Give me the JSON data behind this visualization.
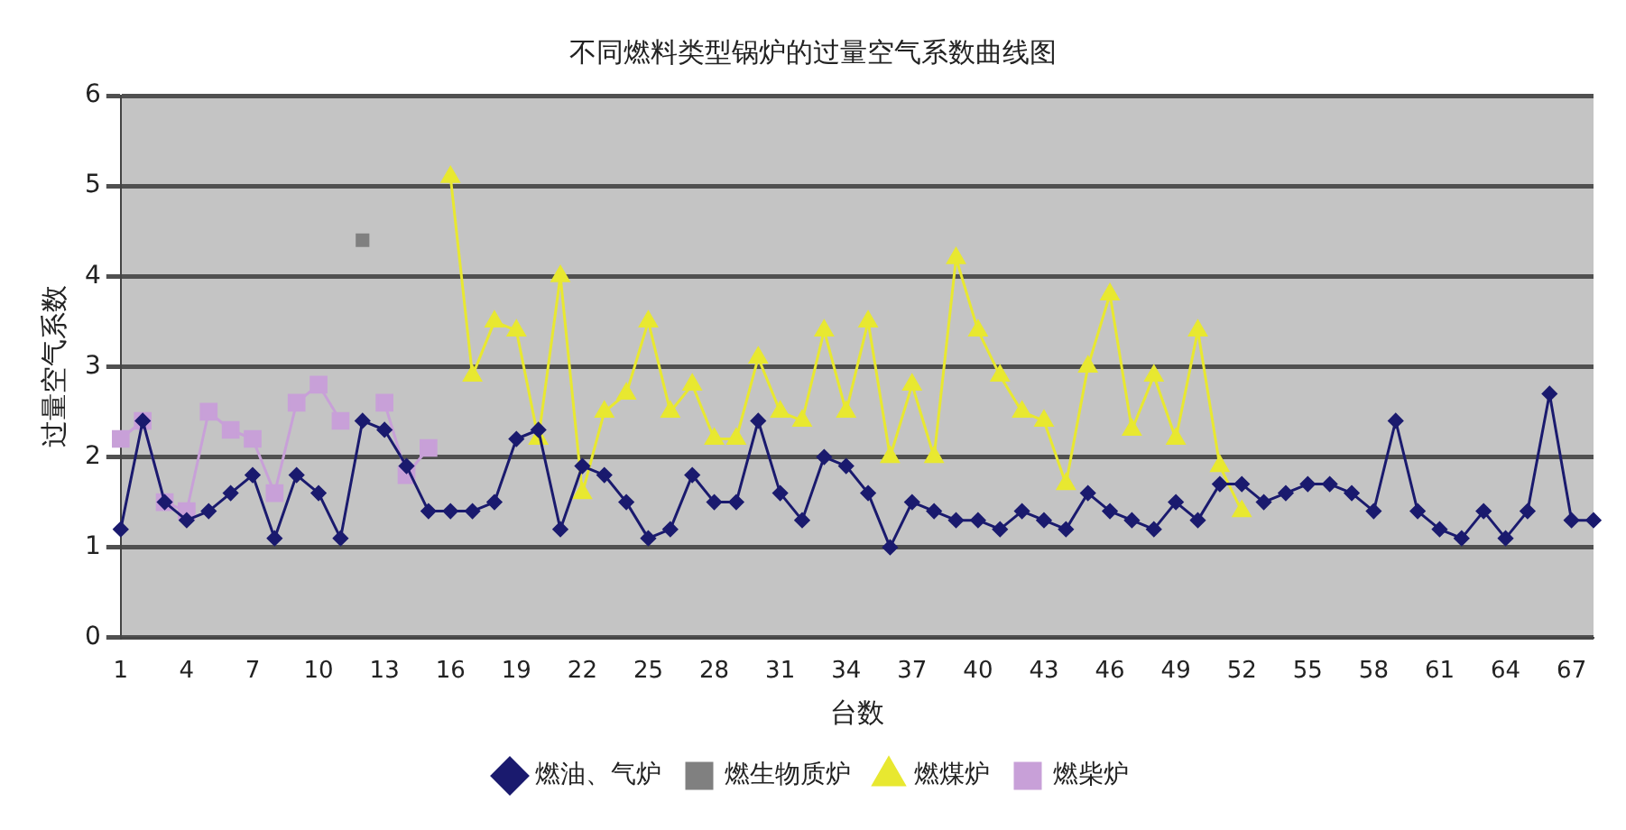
{
  "chart_data": {
    "type": "line",
    "title": "不同燃料类型锅炉的过量空气系数曲线图",
    "xlabel": "台数",
    "ylabel": "过量空气系数",
    "categories": [
      "1",
      null,
      null,
      "4",
      null,
      null,
      "7",
      null,
      null,
      "10",
      null,
      null,
      "13",
      null,
      null,
      "16",
      null,
      null,
      "19",
      null,
      null,
      "22",
      null,
      null,
      "25",
      null,
      null,
      "28",
      null,
      null,
      "31",
      null,
      null,
      "34",
      null,
      null,
      "37",
      null,
      null,
      "40",
      null,
      null,
      "43",
      null,
      null,
      "46",
      null,
      null,
      "49",
      null,
      null,
      "52",
      null,
      null,
      "55",
      null,
      null,
      "58",
      null,
      null,
      "61",
      null,
      null,
      "64",
      null,
      null,
      "67",
      null
    ],
    "ylim": [
      0,
      6
    ],
    "yticks": [
      0,
      1,
      2,
      3,
      4,
      5,
      6
    ],
    "grid": "y",
    "legend": "bottom",
    "series": [
      {
        "name": "燃油、气炉",
        "color": "#1a1a6e",
        "marker": "diamond",
        "values": [
          1.2,
          2.4,
          1.5,
          1.3,
          1.4,
          1.6,
          1.8,
          1.1,
          1.8,
          1.6,
          1.1,
          2.4,
          2.3,
          1.9,
          1.4,
          1.4,
          1.4,
          1.5,
          2.2,
          2.3,
          1.2,
          1.9,
          1.8,
          1.5,
          1.1,
          1.2,
          1.8,
          1.5,
          1.5,
          2.4,
          1.6,
          1.3,
          2.0,
          1.9,
          1.6,
          1.0,
          1.5,
          1.4,
          1.3,
          1.3,
          1.2,
          1.4,
          1.3,
          1.2,
          1.6,
          1.4,
          1.3,
          1.2,
          1.5,
          1.3,
          1.7,
          1.7,
          1.5,
          1.6,
          1.7,
          1.7,
          1.6,
          1.4,
          2.4,
          1.4,
          1.2,
          1.1,
          1.4,
          1.1,
          1.4,
          2.7,
          1.3,
          1.3
        ]
      },
      {
        "name": "燃生物质炉",
        "color": "#808080",
        "marker": "square",
        "values": [
          null,
          null,
          null,
          null,
          null,
          null,
          null,
          null,
          null,
          null,
          null,
          4.4,
          null,
          null,
          null,
          null,
          null,
          null,
          null,
          null,
          null,
          null,
          null,
          null,
          null,
          null,
          null,
          null,
          null,
          null,
          null,
          null,
          null,
          null,
          null,
          null,
          null,
          null,
          null,
          null,
          null,
          null,
          null,
          null,
          null,
          null,
          null,
          null,
          null,
          null,
          null,
          null,
          null,
          null,
          null,
          null,
          null,
          null,
          null,
          null,
          null,
          null,
          null,
          null,
          null,
          null,
          null,
          null
        ]
      },
      {
        "name": "燃煤炉",
        "color": "#e8e830",
        "marker": "triangle",
        "values": [
          null,
          null,
          null,
          null,
          null,
          null,
          null,
          null,
          null,
          null,
          null,
          null,
          null,
          null,
          null,
          5.1,
          2.9,
          3.5,
          3.4,
          2.2,
          4.0,
          1.6,
          2.5,
          2.7,
          3.5,
          2.5,
          2.8,
          2.2,
          2.2,
          3.1,
          2.5,
          2.4,
          3.4,
          2.5,
          3.5,
          2.0,
          2.8,
          2.0,
          4.2,
          3.4,
          2.9,
          2.5,
          2.4,
          1.7,
          3.0,
          3.8,
          2.3,
          2.9,
          2.2,
          3.4,
          1.9,
          1.4,
          null,
          null,
          null,
          null,
          null,
          null,
          null,
          null,
          null,
          null,
          null,
          null,
          null,
          null,
          null,
          null
        ]
      },
      {
        "name": "燃柴炉",
        "color": "#c8a0d8",
        "marker": "square",
        "values": [
          2.2,
          2.4,
          1.5,
          1.4,
          2.5,
          2.3,
          2.2,
          1.6,
          2.6,
          2.8,
          2.4,
          null,
          2.6,
          1.8,
          2.1,
          null,
          null,
          null,
          null,
          null,
          null,
          null,
          null,
          null,
          null,
          null,
          null,
          null,
          null,
          null,
          null,
          null,
          null,
          null,
          null,
          null,
          null,
          null,
          null,
          null,
          null,
          null,
          null,
          null,
          null,
          null,
          null,
          null,
          null,
          null,
          null,
          null,
          null,
          null,
          null,
          null,
          null,
          null,
          null,
          null,
          null,
          null,
          null,
          null,
          null,
          null,
          null,
          null
        ]
      }
    ]
  }
}
